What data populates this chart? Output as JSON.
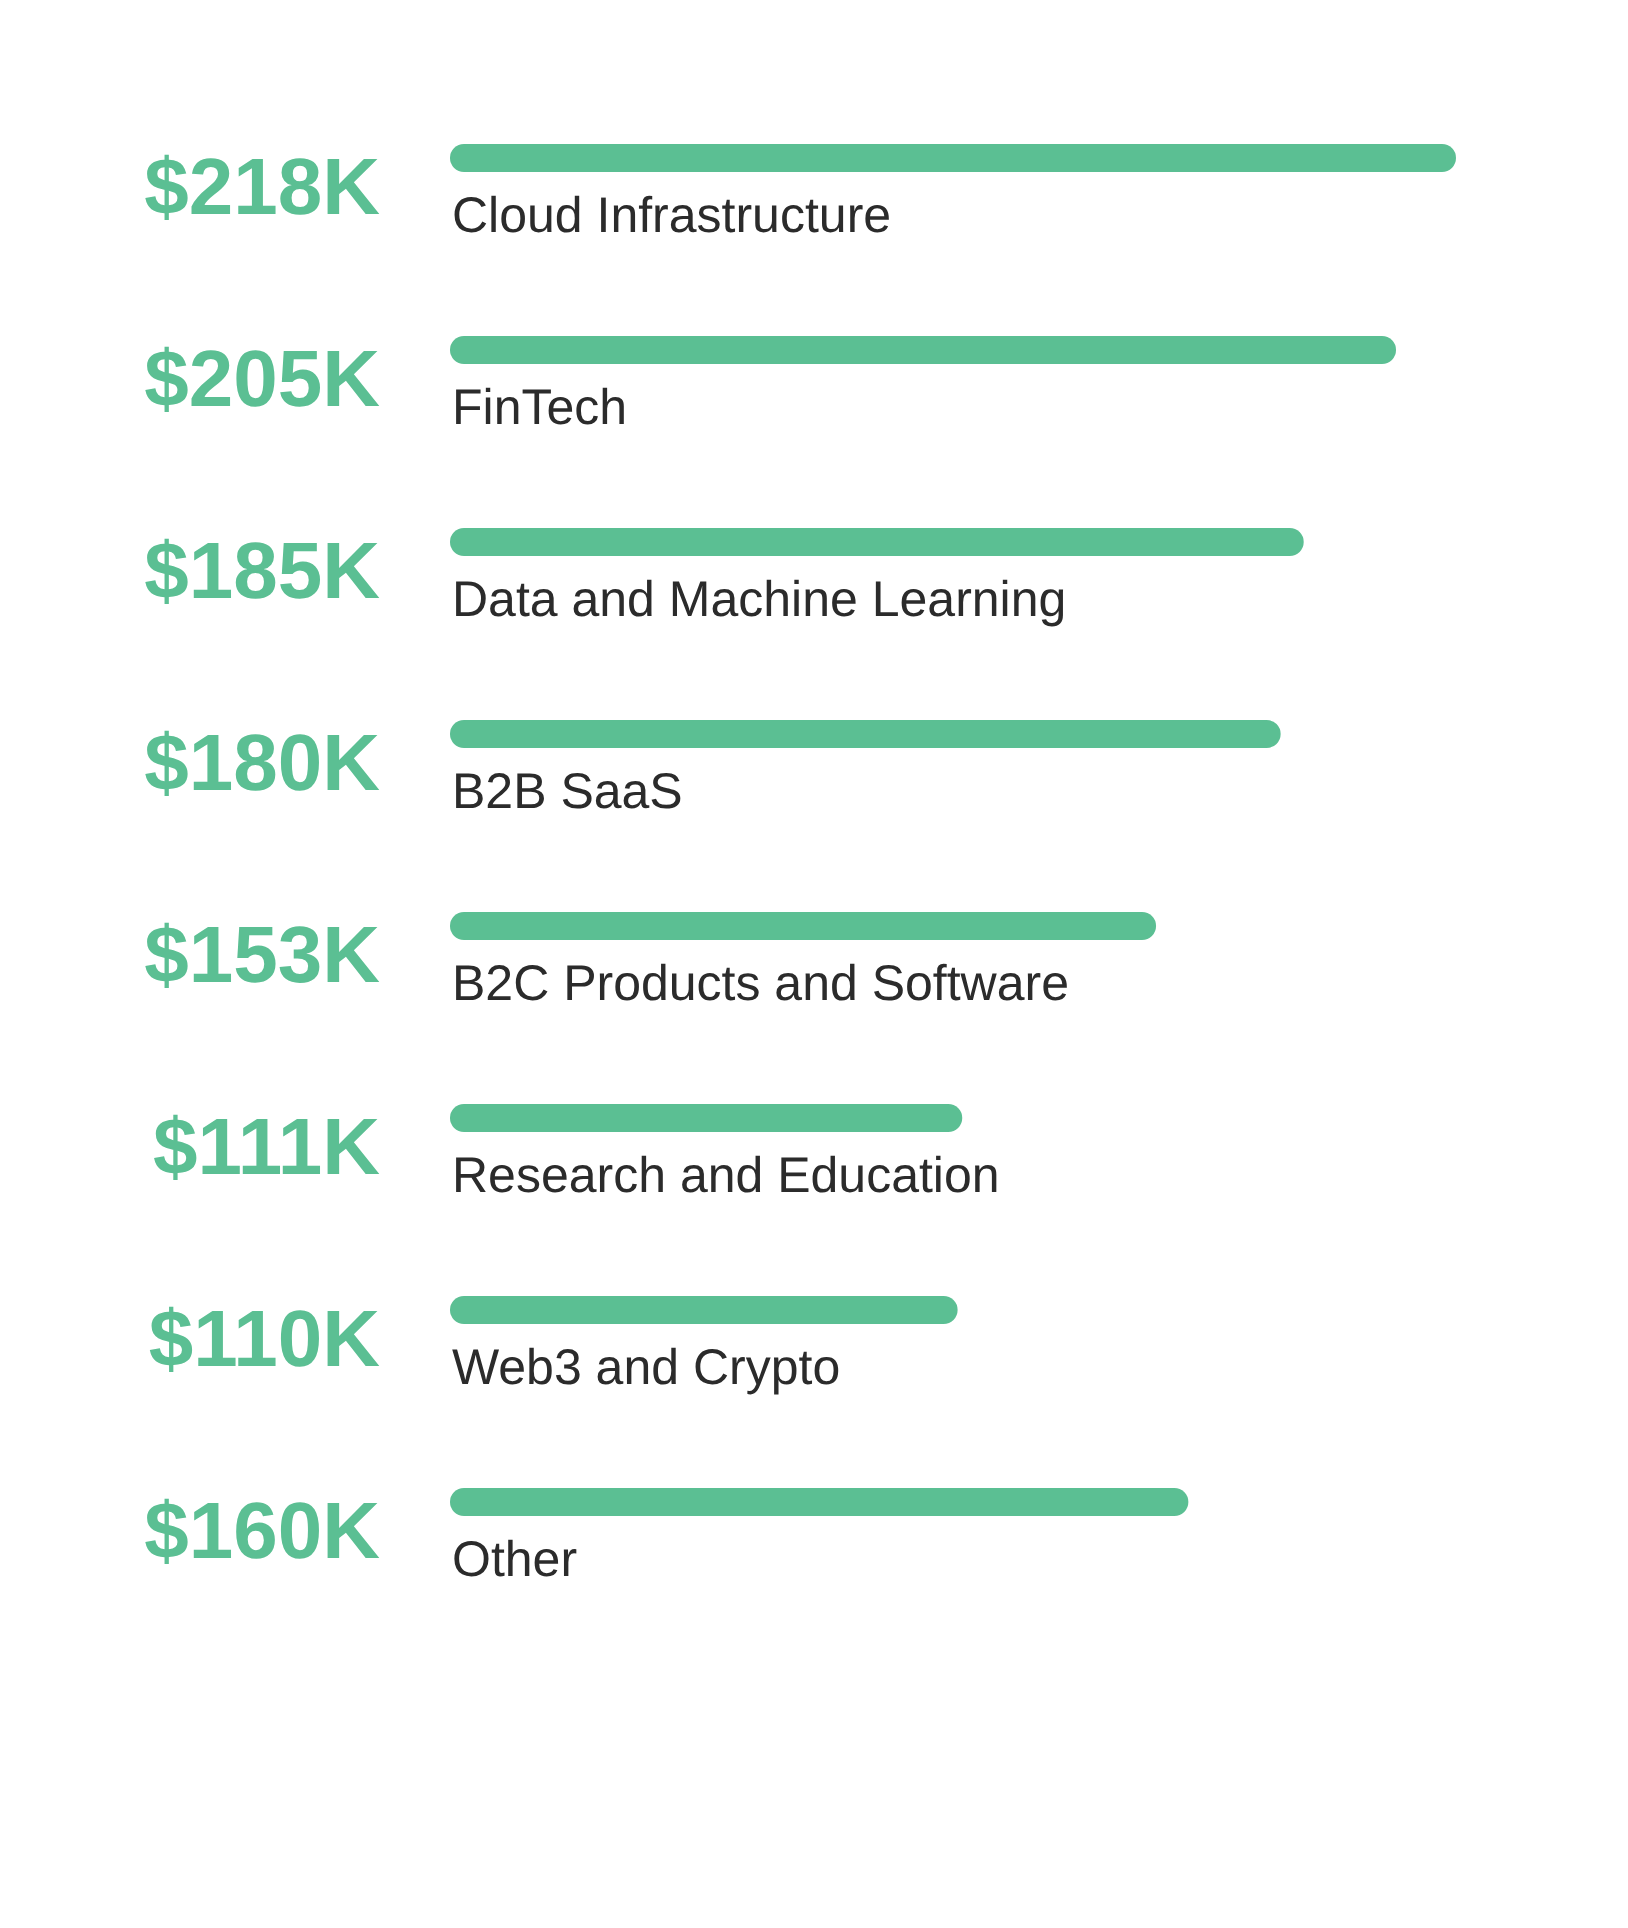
{
  "chart_data": {
    "type": "bar",
    "orientation": "horizontal",
    "categories": [
      "Cloud Infrastructure",
      "FinTech",
      "Data and Machine Learning",
      "B2B SaaS",
      "B2C Products and Software",
      "Research and Education",
      "Web3 and Crypto",
      "Other"
    ],
    "values": [
      218,
      205,
      185,
      180,
      153,
      111,
      110,
      160
    ],
    "value_labels": [
      "$218K",
      "$205K",
      "$185K",
      "$180K",
      "$153K",
      "$111K",
      "$110K",
      "$160K"
    ],
    "color": "#5bbf93"
  }
}
